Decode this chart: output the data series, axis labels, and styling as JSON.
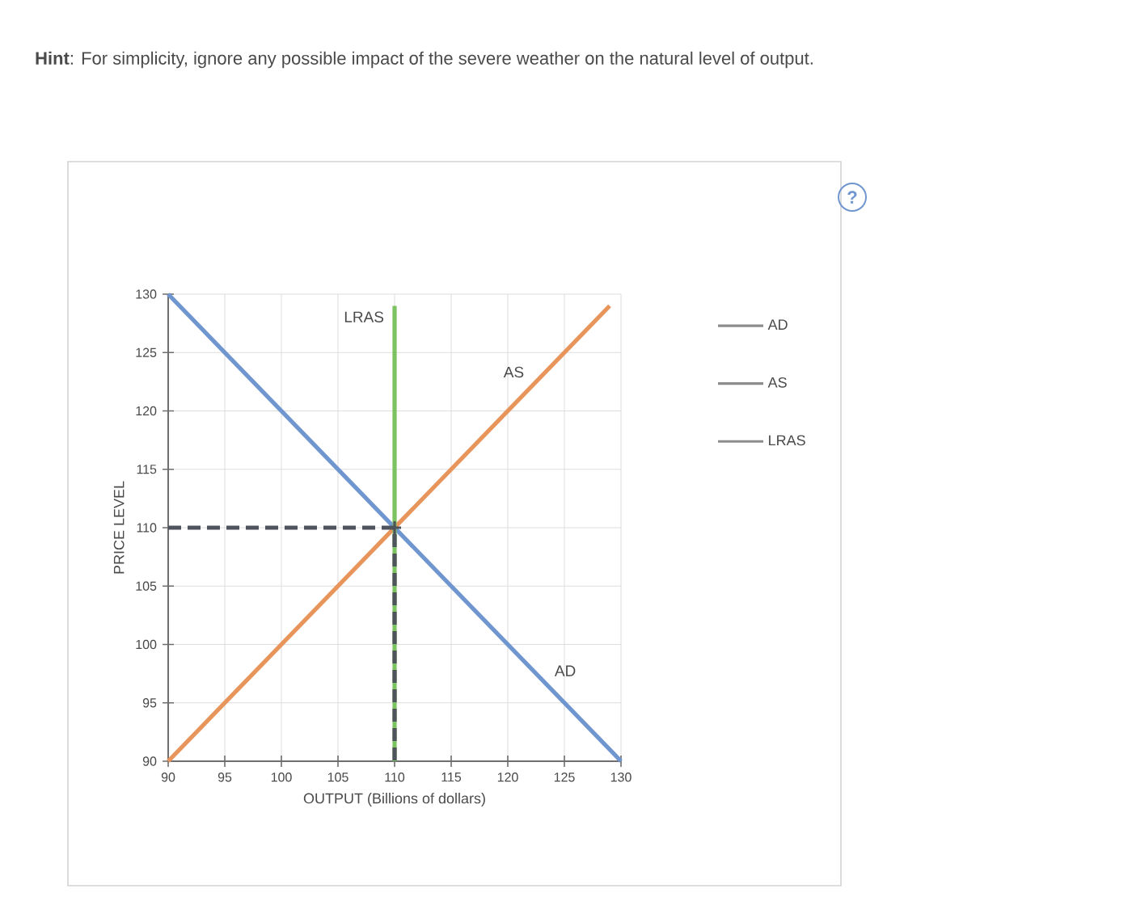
{
  "chart_data": {
    "type": "line",
    "xlabel": "OUTPUT (Billions of dollars)",
    "ylabel": "PRICE LEVEL",
    "annotations": [
      "**Hint**: For simplicity, ignore any possible impact of the severe weather on the natural level of output.",
      "?"
    ],
    "series": [
      {
        "name": "AD",
        "color": "#7096cf",
        "x": [
          90,
          130
        ],
        "values": [
          130,
          90
        ]
      },
      {
        "name": "AS",
        "color": "#e8955c",
        "x": [
          90,
          129
        ],
        "values": [
          90,
          129
        ]
      },
      {
        "name": "LRAS",
        "color": "#7cc260",
        "x": [
          110,
          110
        ],
        "values": [
          90,
          129
        ]
      },
      {
        "color": "#4f545c",
        "x": [
          90,
          110,
          110
        ],
        "values": [
          110,
          110,
          90
        ],
        "line_style": "dashed"
      },
      {
        "type": "scatter",
        "color": "#4f545c",
        "x": [
          110
        ],
        "values": [
          110
        ],
        "marker": "cross"
      }
    ],
    "xlim": [
      90,
      130
    ],
    "ylim": [
      90,
      130
    ],
    "xticks": [
      90,
      95,
      100,
      105,
      110,
      115,
      120,
      125,
      130
    ],
    "yticks": [
      90,
      95,
      100,
      105,
      110,
      115,
      120,
      125,
      130
    ],
    "grid": true,
    "legend": "right"
  }
}
